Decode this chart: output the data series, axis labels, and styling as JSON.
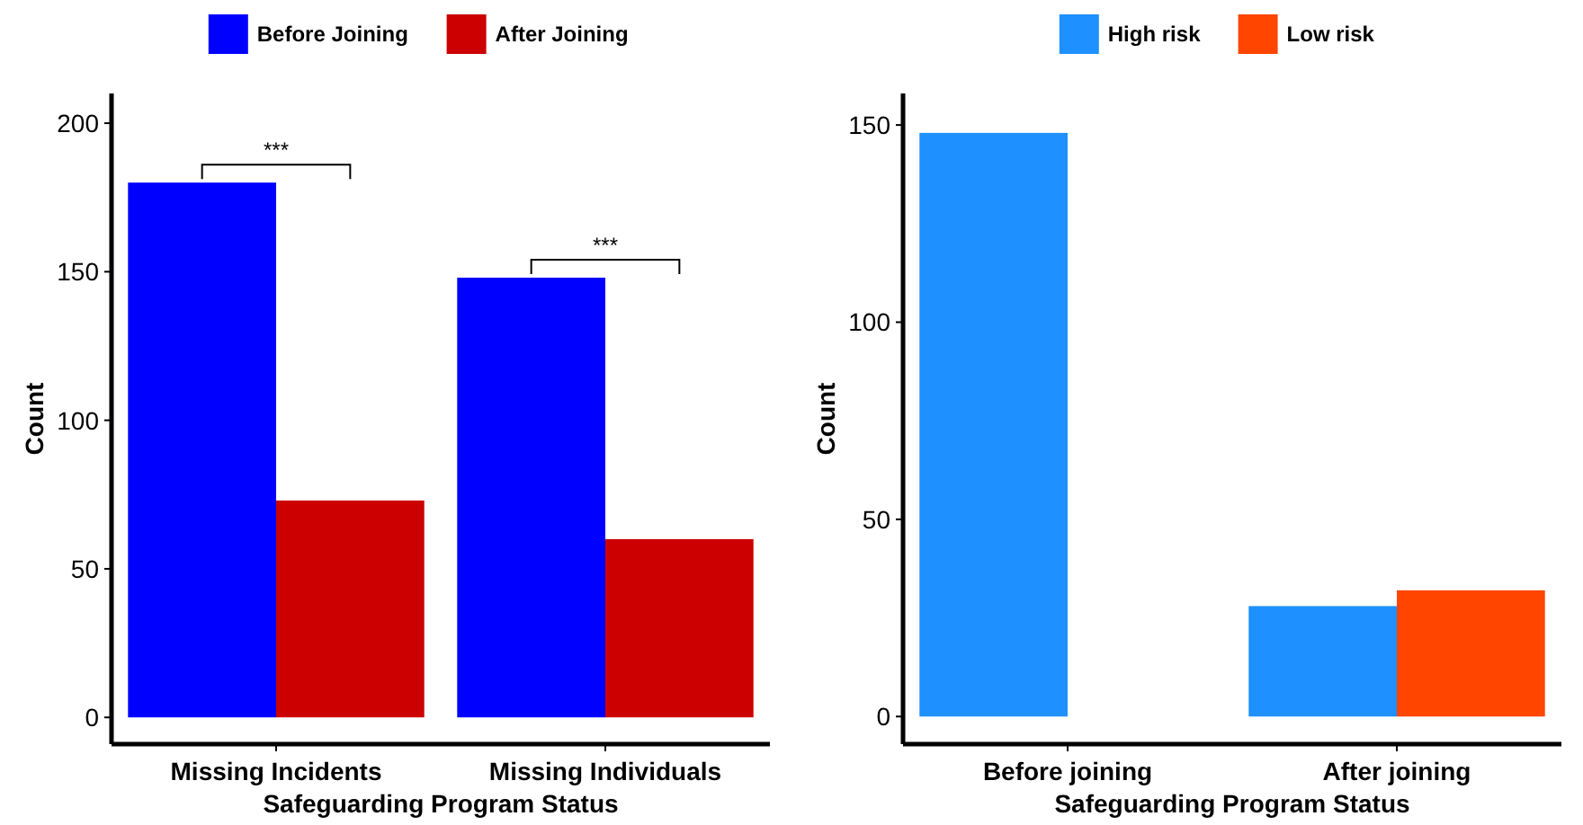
{
  "chart_data": [
    {
      "type": "bar",
      "xlabel": "Safeguarding Program Status",
      "ylabel": "Count",
      "categories": [
        "Missing Incidents",
        "Missing Individuals"
      ],
      "series": [
        {
          "name": "Before Joining",
          "color": "#0000ff",
          "values": [
            180,
            148
          ]
        },
        {
          "name": "After Joining",
          "color": "#cc0000",
          "values": [
            73,
            60
          ]
        }
      ],
      "ylim": [
        -9,
        210
      ],
      "yticks": [
        0,
        50,
        100,
        150,
        200
      ],
      "grid": false,
      "legend": "top",
      "annotations": [
        "***",
        "***"
      ]
    },
    {
      "type": "bar",
      "xlabel": "Safeguarding Program Status",
      "ylabel": "Count",
      "categories": [
        "Before joining",
        "After joining"
      ],
      "series": [
        {
          "name": "High risk",
          "color": "#1e90ff",
          "values": [
            148,
            28
          ]
        },
        {
          "name": "Low risk",
          "color": "#ff4500",
          "values": [
            0,
            32
          ]
        }
      ],
      "ylim": [
        -7,
        158
      ],
      "yticks": [
        0,
        50,
        100,
        150
      ],
      "grid": false,
      "legend": "top"
    }
  ]
}
